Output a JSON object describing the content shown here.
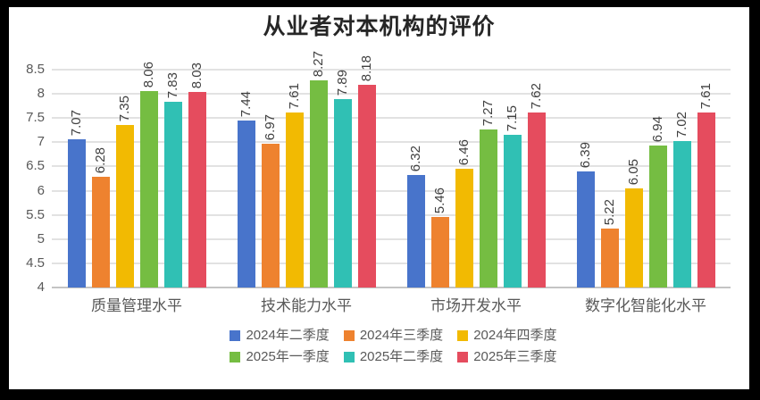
{
  "chart_data": {
    "type": "bar",
    "title": "从业者对本机构的评价",
    "categories": [
      "质量管理水平",
      "技术能力水平",
      "市场开发水平",
      "数字化智能化水平"
    ],
    "series": [
      {
        "name": "2024年二季度",
        "color": "#4874CB",
        "values": [
          7.07,
          7.44,
          6.32,
          6.39
        ]
      },
      {
        "name": "2024年三季度",
        "color": "#EE822F",
        "values": [
          6.28,
          6.97,
          5.46,
          5.22
        ]
      },
      {
        "name": "2024年四季度",
        "color": "#F2BA02",
        "values": [
          7.35,
          7.61,
          6.46,
          6.05
        ]
      },
      {
        "name": "2025年一季度",
        "color": "#75BD42",
        "values": [
          8.06,
          8.27,
          7.27,
          6.94
        ]
      },
      {
        "name": "2025年二季度",
        "color": "#30C0B4",
        "values": [
          7.83,
          7.89,
          7.15,
          7.02
        ]
      },
      {
        "name": "2025年三季度",
        "color": "#E54C5E",
        "values": [
          8.03,
          8.18,
          7.62,
          7.61
        ]
      }
    ],
    "y_axis": {
      "min": 4,
      "max": 8.5,
      "step": 0.5,
      "ticks": [
        "8.5",
        "8",
        "7.5",
        "7",
        "6.5",
        "6",
        "5.5",
        "5",
        "4.5",
        "4"
      ]
    },
    "grid": true,
    "value_labels": "rotated-90",
    "value_label_decimals": 2,
    "legend_position": "bottom",
    "legend_rows": [
      [
        0,
        1,
        2
      ],
      [
        3,
        4,
        5
      ]
    ]
  },
  "styles": {
    "frame": "#000000",
    "background": "#FFFFFF",
    "gridline": "#E2E2E2",
    "baseline": "#C4C4C4",
    "axis_text": "#595959",
    "value_label_text": "#3F3F3F",
    "title_text": "#262626",
    "legend_text": "#595959"
  }
}
